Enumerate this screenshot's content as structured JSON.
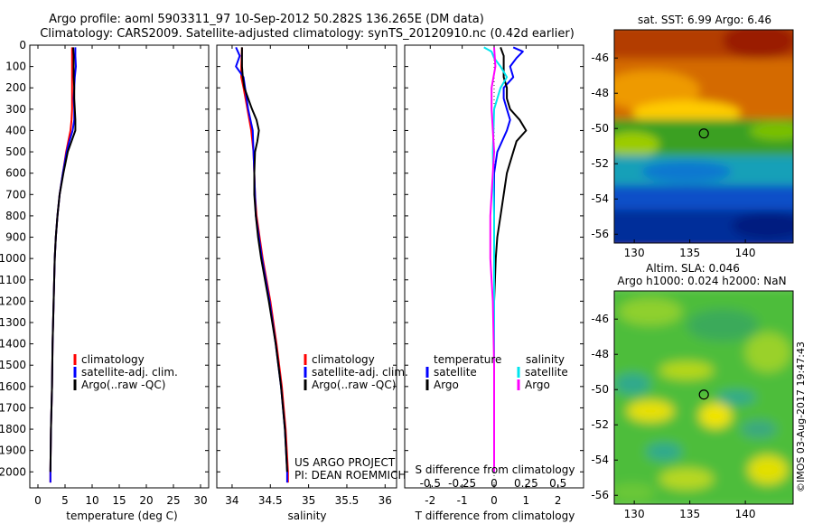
{
  "header": {
    "line1": "Argo profile: aoml 5903311_97 10-Sep-2012 50.282S 136.265E (DM data)",
    "line2": "Climatology: CARS2009. Satellite-adjusted climatology: synTS_20120910.nc (0.42d earlier)"
  },
  "depth_ticks": [
    0,
    100,
    200,
    300,
    400,
    500,
    600,
    700,
    800,
    900,
    1000,
    1100,
    1200,
    1300,
    1400,
    1500,
    1600,
    1700,
    1800,
    1900,
    2000
  ],
  "colors": {
    "climatology": "#ff0000",
    "satellite": "#0000ff",
    "argo": "#000000",
    "s_satellite": "#00e5ee",
    "s_argo": "#ff00ff"
  },
  "chart_data": [
    {
      "type": "line",
      "xlabel": "temperature (deg C)",
      "ylabel": "",
      "xlim": [
        -1.5,
        31.5
      ],
      "ylim": [
        2075,
        0
      ],
      "x_ticks": [
        0,
        5,
        10,
        15,
        20,
        25,
        30
      ],
      "legend": {
        "position": "lower-middle",
        "entries": [
          "climatology",
          "satellite-adj. clim.",
          "Argo(..raw -QC)"
        ]
      },
      "series": [
        {
          "name": "climatology",
          "depth": [
            10,
            50,
            100,
            150,
            200,
            250,
            300,
            350,
            400,
            450,
            500,
            600,
            700,
            800,
            900,
            1000,
            1200,
            1400,
            1600,
            1800,
            2000,
            2050
          ],
          "values": [
            6.3,
            6.3,
            6.3,
            6.3,
            6.3,
            6.3,
            6.3,
            6.2,
            6.0,
            5.6,
            5.2,
            4.6,
            4.0,
            3.6,
            3.3,
            3.1,
            2.9,
            2.7,
            2.6,
            2.4,
            2.3,
            2.3
          ]
        },
        {
          "name": "satellite-adj. clim.",
          "depth": [
            10,
            50,
            100,
            150,
            200,
            250,
            300,
            350,
            400,
            450,
            500,
            600,
            700,
            800,
            900,
            1000,
            1200,
            1400,
            1600,
            1800,
            2000,
            2050
          ],
          "values": [
            6.9,
            6.9,
            7.0,
            6.8,
            6.7,
            6.6,
            6.7,
            6.7,
            6.4,
            5.8,
            5.3,
            4.6,
            4.0,
            3.6,
            3.3,
            3.1,
            2.9,
            2.7,
            2.6,
            2.4,
            2.3,
            2.3
          ]
        },
        {
          "name": "Argo(..raw -QC)",
          "depth": [
            10,
            50,
            100,
            150,
            200,
            250,
            300,
            350,
            400,
            450,
            500,
            600,
            700,
            800,
            900,
            1000,
            1200,
            1400,
            1600,
            1800,
            2000
          ],
          "values": [
            6.5,
            6.6,
            6.6,
            6.6,
            6.7,
            6.7,
            6.8,
            6.9,
            6.9,
            6.2,
            5.5,
            4.7,
            4.0,
            3.6,
            3.3,
            3.1,
            2.9,
            2.7,
            2.6,
            2.4,
            2.3
          ]
        }
      ]
    },
    {
      "type": "line",
      "xlabel": "salinity",
      "ylabel": "",
      "xlim": [
        33.8,
        36.15
      ],
      "ylim": [
        2075,
        0
      ],
      "x_ticks": [
        34,
        34.5,
        35,
        35.5,
        36
      ],
      "legend": {
        "position": "lower-middle",
        "entries": [
          "climatology",
          "satellite-adj. clim.",
          "Argo(..raw -QC)"
        ]
      },
      "annotations": [
        "US ARGO PROJECT",
        "PI: DEAN ROEMMICH"
      ],
      "series": [
        {
          "name": "climatology",
          "depth": [
            10,
            100,
            150,
            200,
            300,
            400,
            500,
            600,
            700,
            800,
            900,
            1000,
            1200,
            1400,
            1600,
            1800,
            2000,
            2050
          ],
          "values": [
            34.13,
            34.12,
            34.12,
            34.15,
            34.2,
            34.25,
            34.28,
            34.29,
            34.3,
            34.32,
            34.36,
            34.4,
            34.5,
            34.58,
            34.65,
            34.7,
            34.73,
            34.73
          ]
        },
        {
          "name": "satellite-adj. clim.",
          "depth": [
            10,
            50,
            100,
            150,
            200,
            300,
            400,
            500,
            600,
            700,
            800,
            900,
            1000,
            1200,
            1400,
            1600,
            1800,
            2000,
            2050
          ],
          "values": [
            34.05,
            34.1,
            34.05,
            34.15,
            34.17,
            34.21,
            34.27,
            34.28,
            34.29,
            34.3,
            34.31,
            34.35,
            34.39,
            34.49,
            34.57,
            34.64,
            34.69,
            34.72,
            34.72
          ]
        },
        {
          "name": "Argo(..raw -QC)",
          "depth": [
            10,
            50,
            100,
            150,
            200,
            250,
            300,
            350,
            400,
            450,
            500,
            600,
            700,
            800,
            900,
            1000,
            1200,
            1400,
            1600,
            1800,
            2000
          ],
          "values": [
            34.13,
            34.13,
            34.13,
            34.14,
            34.16,
            34.21,
            34.26,
            34.32,
            34.35,
            34.33,
            34.3,
            34.29,
            34.29,
            34.31,
            34.34,
            34.38,
            34.48,
            34.57,
            34.64,
            34.69,
            34.72
          ]
        }
      ]
    },
    {
      "type": "line",
      "xlabel": "T difference from climatology",
      "title_bottom": "S difference from climatology",
      "xlim": [
        -2.8,
        2.8
      ],
      "s_xlim": [
        -0.7,
        0.7
      ],
      "ylim": [
        2075,
        0
      ],
      "x_ticks": [
        -2,
        -1,
        0,
        1,
        2
      ],
      "s_ticks": [
        "-0.5",
        "-0.25",
        "0",
        "0.25",
        "0.5"
      ],
      "s_tick_values": [
        -0.5,
        -0.25,
        0,
        0.25,
        0.5
      ],
      "legend": {
        "position": "lower-middle",
        "groups": [
          "temperature",
          "salinity"
        ],
        "entries": [
          "satellite",
          "Argo",
          "satellite",
          "Argo"
        ]
      },
      "series": [
        {
          "name": "temperature satellite",
          "axis": "T",
          "depth": [
            10,
            30,
            60,
            100,
            150,
            200,
            250,
            300,
            350,
            400,
            500,
            600,
            800,
            1000,
            1200,
            1500,
            1800,
            2000
          ],
          "values": [
            0.6,
            0.9,
            0.7,
            0.5,
            0.6,
            0.3,
            0.3,
            0.4,
            0.5,
            0.4,
            0.1,
            0.0,
            0.0,
            0.0,
            0.0,
            0.0,
            0.0,
            0.0
          ]
        },
        {
          "name": "temperature Argo",
          "axis": "T",
          "depth": [
            10,
            50,
            100,
            150,
            200,
            250,
            300,
            350,
            400,
            450,
            500,
            600,
            700,
            800,
            900,
            1000,
            1200,
            1500,
            1800,
            2000
          ],
          "values": [
            0.2,
            0.3,
            0.3,
            0.3,
            0.4,
            0.4,
            0.5,
            0.8,
            1.0,
            0.7,
            0.6,
            0.4,
            0.3,
            0.2,
            0.1,
            0.05,
            0.0,
            0.0,
            0.0,
            0.0
          ]
        },
        {
          "name": "salinity satellite",
          "axis": "S",
          "depth": [
            10,
            30,
            60,
            100,
            150,
            200,
            300,
            500,
            800,
            1000,
            1500,
            1800,
            2000
          ],
          "values": [
            -0.08,
            -0.02,
            0.0,
            0.05,
            0.1,
            0.05,
            0.0,
            -0.01,
            0.0,
            0.0,
            0.0,
            0.0,
            0.0
          ]
        },
        {
          "name": "salinity Argo",
          "axis": "S",
          "depth": [
            10,
            100,
            200,
            300,
            400,
            500,
            600,
            700,
            800,
            900,
            1000,
            1100,
            1200,
            1500,
            1800,
            2000
          ],
          "values": [
            0.0,
            0.01,
            -0.02,
            -0.02,
            -0.01,
            0.0,
            -0.01,
            -0.02,
            -0.03,
            -0.03,
            -0.03,
            -0.02,
            -0.01,
            0.0,
            0.0,
            0.0
          ]
        }
      ]
    },
    {
      "type": "heatmap",
      "title": "sat. SST: 6.99 Argo: 6.46",
      "x_ticks": [
        130,
        135,
        140
      ],
      "y_ticks": [
        -46,
        -48,
        -50,
        -52,
        -54,
        -56
      ],
      "xlim": [
        128.2,
        144.3
      ],
      "ylim": [
        -56.5,
        -44.4
      ],
      "marker": {
        "lon": 136.265,
        "lat": -50.282
      }
    },
    {
      "type": "heatmap",
      "title": "Altim. SLA: 0.046",
      "subtitle": "Argo h1000: 0.024 h2000: NaN",
      "x_ticks": [
        130,
        135,
        140
      ],
      "y_ticks": [
        -46,
        -48,
        -50,
        -52,
        -54,
        -56
      ],
      "xlim": [
        128.2,
        144.3
      ],
      "ylim": [
        -56.5,
        -44.4
      ],
      "marker": {
        "lon": 136.265,
        "lat": -50.282
      }
    }
  ],
  "watermark": "©IMOS 03-Aug-2017 19:47:43"
}
